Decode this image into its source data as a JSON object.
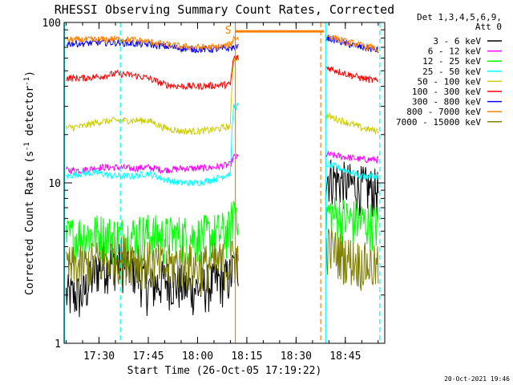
{
  "chart_data": {
    "type": "line",
    "title": "RHESSI Observing Summary Count Rates, Corrected",
    "xlabel": "Start Time (26-Oct-05 17:19:22)",
    "ylabel": "Corrected Count Rate (s-1 detector-1)",
    "ylabel_parts": [
      "Corrected Count Rate (s",
      "-1",
      " detector",
      "-1",
      ")"
    ],
    "y_scale": "log",
    "ylim": [
      1,
      100
    ],
    "y_ticks": [
      "1",
      "10",
      "100"
    ],
    "xlim": [
      "17:19:22",
      "18:57:00"
    ],
    "x_ticks": [
      "17:30",
      "17:45",
      "18:00",
      "18:15",
      "18:30",
      "18:45"
    ],
    "grid": false,
    "legend_position": "right",
    "legend_header": [
      "Det 1,3,4,5,6,9,",
      "Att 0"
    ],
    "flare_marker_label": "S",
    "timestamp": "20-Oct-2021 19:46",
    "data_gaps": [
      [
        "18:12:30",
        "18:39:00"
      ]
    ],
    "vertical_markers": [
      {
        "time": "17:19:30",
        "style": "solid",
        "color": "#00ffff"
      },
      {
        "time": "17:36:30",
        "style": "dashed",
        "color": "#00ffff"
      },
      {
        "time": "18:11:30",
        "style": "solid",
        "color": "#ff8000"
      },
      {
        "time": "18:37:30",
        "style": "dashed",
        "color": "#ff8000"
      },
      {
        "time": "18:39:00",
        "style": "solid",
        "color": "#00ffff"
      },
      {
        "time": "18:55:30",
        "style": "dashed",
        "color": "#00ffff"
      }
    ],
    "saturation_bar": {
      "start": "18:11:30",
      "end": "18:38:30",
      "value": 88,
      "color": "#ff8000"
    },
    "series": [
      {
        "name": "3 - 6 keV",
        "color": "#000000",
        "x": [
          "17:20",
          "17:25",
          "17:30",
          "17:35",
          "17:40",
          "17:45",
          "17:50",
          "17:55",
          "18:00",
          "18:05",
          "18:10",
          "18:11",
          "18:40",
          "18:45",
          "18:50",
          "18:55"
        ],
        "y": [
          2.0,
          2.0,
          3.0,
          3.2,
          3.0,
          2.2,
          2.5,
          2.3,
          2.2,
          2.4,
          2.6,
          3.0,
          11.0,
          10.0,
          9.5,
          9.0
        ]
      },
      {
        "name": "6 - 12 keV",
        "color": "#ff00ff",
        "x": [
          "17:20",
          "17:25",
          "17:30",
          "17:35",
          "17:40",
          "17:45",
          "17:50",
          "17:55",
          "18:00",
          "18:05",
          "18:10",
          "18:11",
          "18:40",
          "18:45",
          "18:50",
          "18:55"
        ],
        "y": [
          12.0,
          12.0,
          12.5,
          12.5,
          12.3,
          12.5,
          12.0,
          12.3,
          12.3,
          12.5,
          13.0,
          14.5,
          15.0,
          14.5,
          14.0,
          14.0
        ]
      },
      {
        "name": "12 - 25 keV",
        "color": "#00ff00",
        "x": [
          "17:20",
          "17:25",
          "17:30",
          "17:35",
          "17:40",
          "17:45",
          "17:50",
          "17:55",
          "18:00",
          "18:05",
          "18:10",
          "18:11",
          "18:40",
          "18:45",
          "18:50",
          "18:55"
        ],
        "y": [
          4.5,
          4.8,
          4.8,
          4.6,
          4.7,
          4.8,
          4.6,
          4.7,
          4.6,
          4.8,
          5.0,
          7.0,
          6.5,
          6.0,
          5.8,
          5.5
        ]
      },
      {
        "name": "25 - 50 keV",
        "color": "#00ffff",
        "x": [
          "17:20",
          "17:25",
          "17:30",
          "17:35",
          "17:40",
          "17:45",
          "17:50",
          "17:55",
          "18:00",
          "18:05",
          "18:10",
          "18:11",
          "18:40",
          "18:45",
          "18:50",
          "18:55"
        ],
        "y": [
          11.0,
          11.5,
          11.5,
          11.0,
          11.0,
          11.5,
          10.5,
          10.0,
          10.0,
          10.5,
          11.5,
          30.0,
          13.0,
          12.0,
          11.0,
          11.0
        ]
      },
      {
        "name": "50 - 100 keV",
        "color": "#cccc00",
        "x": [
          "17:20",
          "17:25",
          "17:30",
          "17:35",
          "17:40",
          "17:45",
          "17:50",
          "17:55",
          "18:00",
          "18:05",
          "18:10",
          "18:11",
          "18:40",
          "18:45",
          "18:50",
          "18:55"
        ],
        "y": [
          22.0,
          22.5,
          24.0,
          24.5,
          24.5,
          24.5,
          22.0,
          21.0,
          21.0,
          21.5,
          22.5,
          60.0,
          26.0,
          24.0,
          22.0,
          21.0
        ]
      },
      {
        "name": "100 - 300 keV",
        "color": "#ff0000",
        "x": [
          "17:20",
          "17:25",
          "17:30",
          "17:35",
          "17:40",
          "17:45",
          "17:50",
          "17:55",
          "18:00",
          "18:05",
          "18:10",
          "18:11",
          "18:40",
          "18:45",
          "18:50",
          "18:55"
        ],
        "y": [
          45.0,
          45.0,
          46.0,
          48.0,
          47.0,
          45.0,
          41.0,
          40.0,
          40.0,
          40.5,
          41.0,
          60.0,
          52.0,
          48.0,
          45.0,
          43.0
        ]
      },
      {
        "name": "300 - 800 keV",
        "color": "#0000ff",
        "x": [
          "17:20",
          "17:25",
          "17:30",
          "17:35",
          "17:40",
          "17:45",
          "17:50",
          "17:55",
          "18:00",
          "18:05",
          "18:10",
          "18:11",
          "18:40",
          "18:45",
          "18:50",
          "18:55"
        ],
        "y": [
          74.0,
          74.0,
          75.0,
          75.0,
          74.0,
          73.0,
          71.0,
          69.0,
          68.0,
          68.0,
          69.0,
          70.0,
          80.0,
          74.0,
          70.0,
          67.0
        ]
      },
      {
        "name": "800 - 7000 keV",
        "color": "#ff8000",
        "x": [
          "17:20",
          "17:25",
          "17:30",
          "17:35",
          "17:40",
          "17:45",
          "17:50",
          "17:55",
          "18:00",
          "18:05",
          "18:10",
          "18:11",
          "18:40",
          "18:45",
          "18:50",
          "18:55"
        ],
        "y": [
          78.0,
          78.0,
          78.0,
          79.0,
          78.0,
          76.0,
          73.0,
          71.0,
          70.0,
          70.0,
          72.0,
          80.0,
          82.0,
          76.0,
          72.0,
          68.0
        ]
      },
      {
        "name": "7000 - 15000 keV",
        "color": "#808000",
        "x": [
          "17:20",
          "17:25",
          "17:30",
          "17:35",
          "17:40",
          "17:45",
          "17:50",
          "17:55",
          "18:00",
          "18:05",
          "18:10",
          "18:11",
          "18:40",
          "18:45",
          "18:50",
          "18:55"
        ],
        "y": [
          3.0,
          3.0,
          3.3,
          3.5,
          3.5,
          3.2,
          3.0,
          3.2,
          3.0,
          3.2,
          3.2,
          3.5,
          4.0,
          3.5,
          3.2,
          3.0
        ]
      }
    ]
  }
}
